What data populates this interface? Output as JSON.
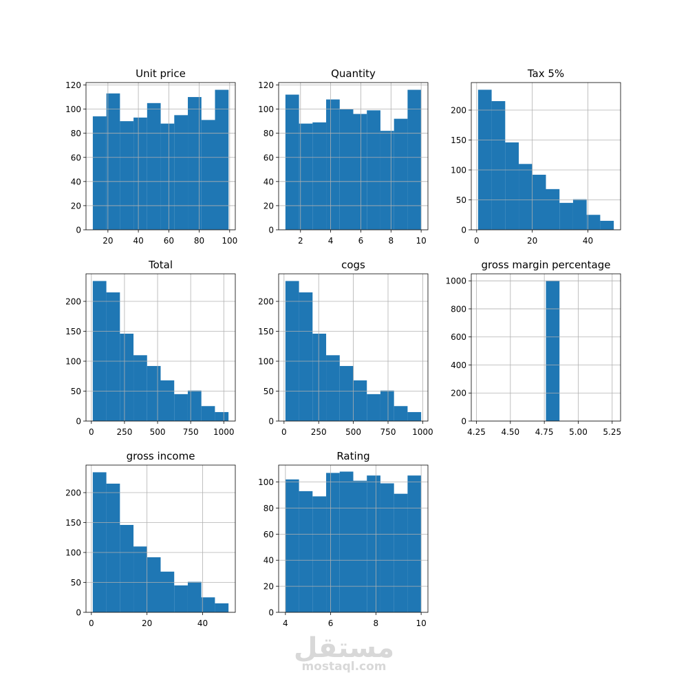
{
  "chart_data": [
    {
      "type": "bar",
      "title": "Unit price",
      "bin_edges": [
        10.08,
        19.0,
        27.92,
        36.84,
        45.76,
        54.68,
        63.6,
        72.52,
        81.44,
        90.36,
        99.28
      ],
      "values": [
        94,
        113,
        90,
        93,
        105,
        88,
        95,
        110,
        91,
        116
      ],
      "xlim": [
        5.6,
        103.7
      ],
      "ylim": [
        0,
        122
      ],
      "xticks": [
        20,
        40,
        60,
        80,
        100
      ],
      "xtick_labels": [
        "20",
        "40",
        "60",
        "80",
        "100"
      ],
      "yticks": [
        0,
        20,
        40,
        60,
        80,
        100,
        120
      ],
      "ytick_labels": [
        "0",
        "20",
        "40",
        "60",
        "80",
        "100",
        "120"
      ],
      "grid": true
    },
    {
      "type": "bar",
      "title": "Quantity",
      "bin_edges": [
        1.0,
        1.9,
        2.8,
        3.7,
        4.6,
        5.5,
        6.4,
        7.3,
        8.2,
        9.1,
        10.0
      ],
      "values": [
        112,
        88,
        89,
        108,
        100,
        96,
        99,
        82,
        92,
        116
      ],
      "xlim": [
        0.55,
        10.45
      ],
      "ylim": [
        0,
        122
      ],
      "xticks": [
        2,
        4,
        6,
        8,
        10
      ],
      "xtick_labels": [
        "2",
        "4",
        "6",
        "8",
        "10"
      ],
      "yticks": [
        0,
        20,
        40,
        60,
        80,
        100,
        120
      ],
      "ytick_labels": [
        "0",
        "20",
        "40",
        "60",
        "80",
        "100",
        "120"
      ],
      "grid": true
    },
    {
      "type": "bar",
      "title": "Tax 5%",
      "bin_edges": [
        0.51,
        5.39,
        10.27,
        15.15,
        20.03,
        24.91,
        29.79,
        34.67,
        39.55,
        44.43,
        49.31
      ],
      "values": [
        234,
        215,
        146,
        110,
        92,
        68,
        45,
        51,
        25,
        15
      ],
      "xlim": [
        -1.93,
        51.75
      ],
      "ylim": [
        0,
        246
      ],
      "xticks": [
        0,
        20,
        40
      ],
      "xtick_labels": [
        "0",
        "20",
        "40"
      ],
      "yticks": [
        0,
        50,
        100,
        150,
        200
      ],
      "ytick_labels": [
        "0",
        "50",
        "100",
        "150",
        "200"
      ],
      "grid": true
    },
    {
      "type": "bar",
      "title": "Total",
      "bin_edges": [
        10.68,
        113.18,
        215.68,
        318.18,
        420.68,
        523.18,
        625.68,
        728.18,
        830.68,
        933.18,
        1035.68
      ],
      "values": [
        234,
        215,
        146,
        110,
        92,
        68,
        45,
        51,
        25,
        15
      ],
      "xlim": [
        -40.57,
        1086.93
      ],
      "ylim": [
        0,
        246
      ],
      "xticks": [
        0,
        250,
        500,
        750,
        1000
      ],
      "xtick_labels": [
        "0",
        "250",
        "500",
        "750",
        "1000"
      ],
      "yticks": [
        0,
        50,
        100,
        150,
        200
      ],
      "ytick_labels": [
        "0",
        "50",
        "100",
        "150",
        "200"
      ],
      "grid": true
    },
    {
      "type": "bar",
      "title": "cogs",
      "bin_edges": [
        10.17,
        108.03,
        205.89,
        303.75,
        401.61,
        499.47,
        597.33,
        695.19,
        793.05,
        890.91,
        988.77
      ],
      "values": [
        234,
        215,
        146,
        110,
        92,
        68,
        45,
        51,
        25,
        15
      ],
      "xlim": [
        -38.76,
        1037.7
      ],
      "ylim": [
        0,
        246
      ],
      "xticks": [
        0,
        250,
        500,
        750,
        1000
      ],
      "xtick_labels": [
        "0",
        "250",
        "500",
        "750",
        "1000"
      ],
      "yticks": [
        0,
        50,
        100,
        150,
        200
      ],
      "ytick_labels": [
        "0",
        "50",
        "100",
        "150",
        "200"
      ],
      "grid": true
    },
    {
      "type": "bar",
      "title": "gross margin percentage",
      "bin_edges": [
        4.7619,
        4.8619
      ],
      "values": [
        1000
      ],
      "xlim": [
        4.2119,
        5.3119
      ],
      "ylim": [
        0,
        1050
      ],
      "xticks": [
        4.25,
        4.5,
        4.75,
        5.0,
        5.25
      ],
      "xtick_labels": [
        "4.25",
        "4.50",
        "4.75",
        "5.00",
        "5.25"
      ],
      "yticks": [
        0,
        200,
        400,
        600,
        800,
        1000
      ],
      "ytick_labels": [
        "0",
        "200",
        "400",
        "600",
        "800",
        "1000"
      ],
      "grid": true
    },
    {
      "type": "bar",
      "title": "gross income",
      "bin_edges": [
        0.51,
        5.39,
        10.27,
        15.15,
        20.03,
        24.91,
        29.79,
        34.67,
        39.55,
        44.43,
        49.31
      ],
      "values": [
        234,
        215,
        146,
        110,
        92,
        68,
        45,
        51,
        25,
        15
      ],
      "xlim": [
        -1.93,
        51.75
      ],
      "ylim": [
        0,
        246
      ],
      "xticks": [
        0,
        20,
        40
      ],
      "xtick_labels": [
        "0",
        "20",
        "40"
      ],
      "yticks": [
        0,
        50,
        100,
        150,
        200
      ],
      "ytick_labels": [
        "0",
        "50",
        "100",
        "150",
        "200"
      ],
      "grid": true
    },
    {
      "type": "bar",
      "title": "Rating",
      "bin_edges": [
        4.0,
        4.6,
        5.2,
        5.8,
        6.4,
        7.0,
        7.6,
        8.2,
        8.8,
        9.4,
        10.0
      ],
      "values": [
        102,
        93,
        89,
        107,
        108,
        101,
        105,
        99,
        91,
        105
      ],
      "xlim": [
        3.7,
        10.3
      ],
      "ylim": [
        0,
        113
      ],
      "xticks": [
        4,
        6,
        8,
        10
      ],
      "xtick_labels": [
        "4",
        "6",
        "8",
        "10"
      ],
      "yticks": [
        0,
        20,
        40,
        60,
        80,
        100
      ],
      "ytick_labels": [
        "0",
        "20",
        "40",
        "60",
        "80",
        "100"
      ],
      "grid": true
    }
  ],
  "colors": {
    "bar": "#1f77b4",
    "grid": "#b0b0b0",
    "spine": "#000000"
  },
  "watermark": {
    "arabic": "مستقل",
    "domain": "mostaql.com"
  }
}
